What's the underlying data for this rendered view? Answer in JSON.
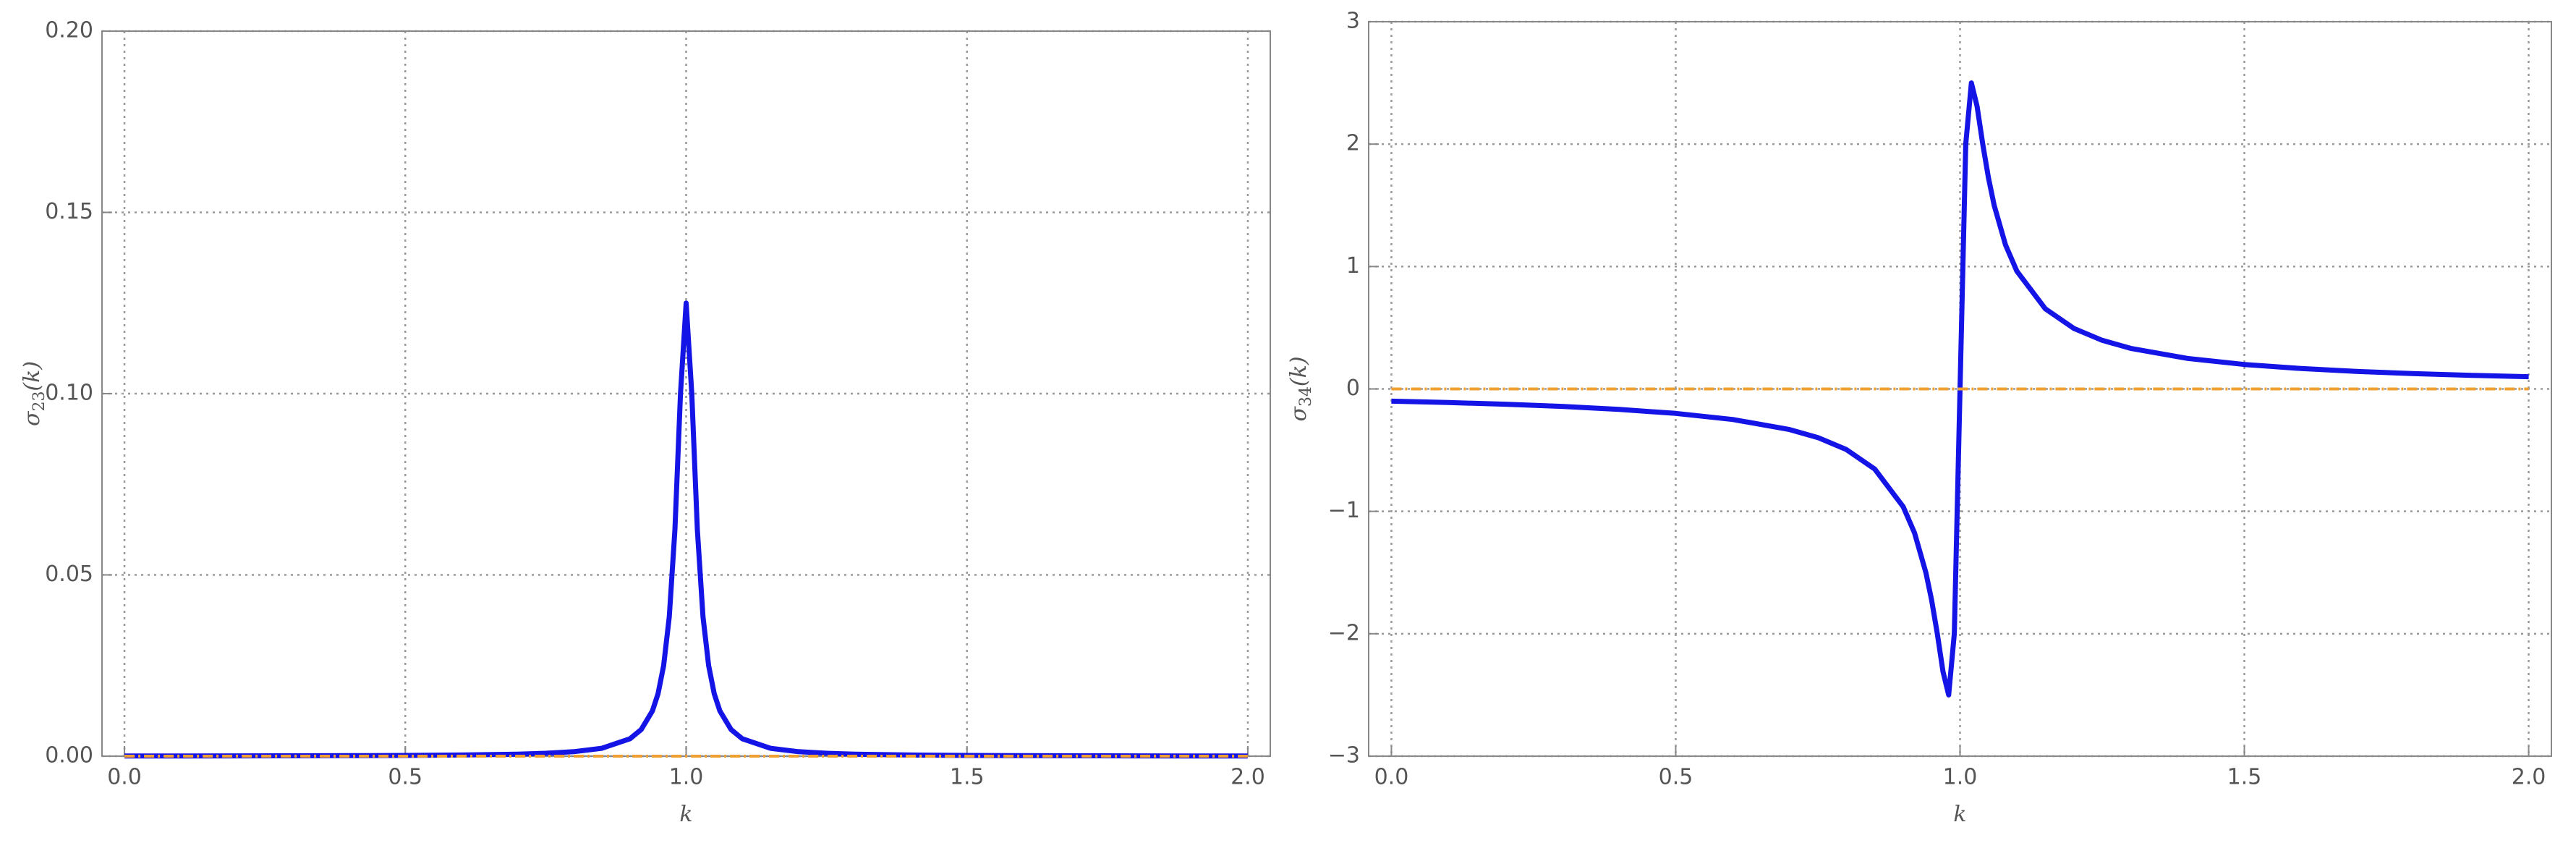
{
  "chart_data": [
    {
      "type": "line",
      "xlabel": "k",
      "ylabel": {
        "symbol": "σ",
        "subscript": "23",
        "arg": "(k)"
      },
      "xlim": [
        -0.04,
        2.04
      ],
      "ylim": [
        0,
        0.2
      ],
      "xticks": [
        {
          "value": 0,
          "label": "0.0"
        },
        0.5,
        {
          "value": 1,
          "label": "1.0"
        },
        1.5,
        {
          "value": 2,
          "label": "2.0"
        }
      ],
      "yticks": [
        {
          "value": 0,
          "label": "0.00"
        },
        {
          "value": 0.05,
          "label": "0.05"
        },
        {
          "value": 0.1,
          "label": "0.10"
        },
        {
          "value": 0.15,
          "label": "0.15"
        },
        {
          "value": 0.2,
          "label": "0.20"
        }
      ],
      "grid": true,
      "series": [
        {
          "color": "#1414e6",
          "x": [
            0,
            0.1,
            0.2,
            0.3,
            0.4,
            0.5,
            0.6,
            0.7,
            0.75,
            0.8,
            0.85,
            0.9,
            0.92,
            0.94,
            0.95,
            0.96,
            0.97,
            0.98,
            0.99,
            1.0,
            1.01,
            1.02,
            1.03,
            1.04,
            1.05,
            1.06,
            1.08,
            1.1,
            1.15,
            1.2,
            1.25,
            1.3,
            1.4,
            1.5,
            1.6,
            1.7,
            1.8,
            1.9,
            2.0
          ],
          "values": [
            5e-05,
            6.17e-05,
            7.8e-05,
            0.000102,
            0.000139,
            0.0002,
            0.000312,
            0.000553,
            0.000795,
            0.00124,
            0.00218,
            0.00481,
            0.00735,
            0.0125,
            0.01724,
            0.025,
            0.03846,
            0.0625,
            0.1,
            0.125,
            0.1,
            0.0625,
            0.03846,
            0.025,
            0.01724,
            0.0125,
            0.00735,
            0.00481,
            0.00218,
            0.00124,
            0.000795,
            0.000553,
            0.000312,
            0.0002,
            0.000139,
            0.000102,
            7.8e-05,
            6.17e-05,
            5e-05
          ]
        },
        {
          "color": "#f0a030",
          "dashed": true,
          "x": [
            0,
            2
          ],
          "values": [
            0,
            0
          ]
        }
      ]
    },
    {
      "type": "line",
      "xlabel": "k",
      "ylabel": {
        "symbol": "σ",
        "subscript": "34",
        "arg": "(k)"
      },
      "xlim": [
        -0.04,
        2.04
      ],
      "ylim": [
        -3,
        3
      ],
      "xticks": [
        {
          "value": 0,
          "label": "0.0"
        },
        0.5,
        {
          "value": 1,
          "label": "1.0"
        },
        1.5,
        {
          "value": 2,
          "label": "2.0"
        }
      ],
      "yticks": [
        {
          "value": -3,
          "label": "−3"
        },
        {
          "value": -2,
          "label": "−2"
        },
        {
          "value": -1,
          "label": "−1"
        },
        0,
        1,
        2,
        3
      ],
      "grid": true,
      "series": [
        {
          "color": "#1414e6",
          "x": [
            0,
            0.1,
            0.2,
            0.3,
            0.4,
            0.5,
            0.6,
            0.7,
            0.75,
            0.8,
            0.85,
            0.9,
            0.92,
            0.94,
            0.95,
            0.96,
            0.97,
            0.98,
            0.99,
            1.0,
            1.01,
            1.02,
            1.03,
            1.04,
            1.05,
            1.06,
            1.08,
            1.1,
            1.15,
            1.2,
            1.25,
            1.3,
            1.4,
            1.5,
            1.6,
            1.7,
            1.8,
            1.9,
            2.0
          ],
          "values": [
            -0.1,
            -0.1111,
            -0.1249,
            -0.1427,
            -0.1665,
            -0.1997,
            -0.2494,
            -0.3319,
            -0.3975,
            -0.495,
            -0.655,
            -0.9615,
            -1.1765,
            -1.5,
            -1.7241,
            -2.0,
            -2.3077,
            -2.5,
            -2.0,
            0,
            2.0,
            2.5,
            2.3077,
            2.0,
            1.7241,
            1.5,
            1.1765,
            0.9615,
            0.655,
            0.495,
            0.3975,
            0.3319,
            0.2494,
            0.1997,
            0.1665,
            0.1427,
            0.1249,
            0.1111,
            0.1
          ]
        },
        {
          "color": "#f0a030",
          "dashed": true,
          "x": [
            0,
            2
          ],
          "values": [
            0,
            0
          ]
        }
      ]
    }
  ]
}
